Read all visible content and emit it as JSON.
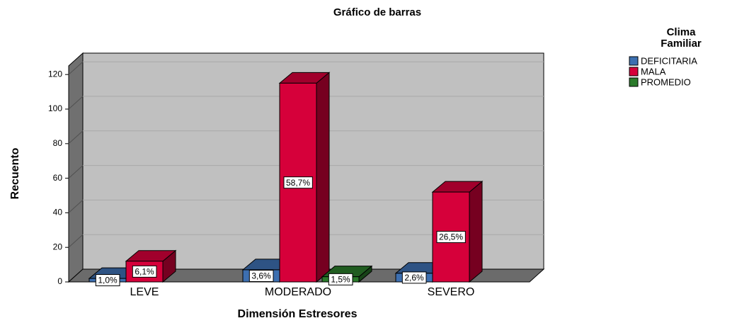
{
  "chart_data": {
    "type": "bar3d",
    "title": "Gráfico de barras",
    "x_label": "Dimensión Estresores",
    "y_label": "Recuento",
    "legend_title": "Clima Familiar",
    "categories": [
      "LEVE",
      "MODERADO",
      "SEVERO"
    ],
    "series": [
      {
        "name": "DEFICITARIA",
        "color": "#3d6fb0",
        "values": [
          2,
          7,
          5
        ],
        "value_labels": [
          "1,0%",
          "3,6%",
          "2,6%"
        ]
      },
      {
        "name": "MALA",
        "color": "#d6003a",
        "values": [
          12,
          115,
          52
        ],
        "value_labels": [
          "6,1%",
          "58,7%",
          "26,5%"
        ]
      },
      {
        "name": "PROMEDIO",
        "color": "#2a7a2a",
        "values": [
          null,
          3,
          null
        ],
        "value_labels": [
          null,
          "1,5%",
          null
        ]
      }
    ],
    "ylim": [
      0,
      125
    ],
    "yticks": [
      0,
      20,
      40,
      60,
      80,
      100,
      120
    ],
    "grid": true,
    "legend": "right"
  }
}
